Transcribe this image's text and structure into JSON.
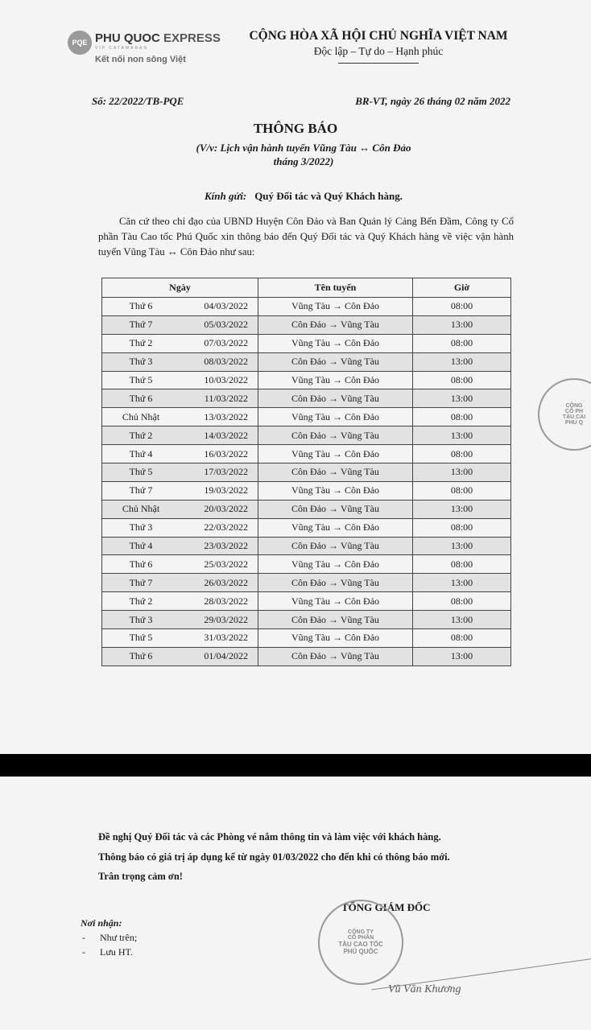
{
  "logo": {
    "brand_1": "PHU QUOC",
    "brand_2": " EXPRESS",
    "sub": "VIP CATAMARAN",
    "slogan": "Kết nối non sông Việt",
    "mark": "PQE"
  },
  "nation": {
    "line1": "CỘNG HÒA XÃ HỘI CHỦ NGHĨA VIỆT NAM",
    "line2": "Độc lập – Tự do – Hạnh phúc"
  },
  "doc_number": "Số: 22/2022/TB-PQE",
  "doc_date": "BR-VT, ngày 26 tháng 02 năm 2022",
  "title": "THÔNG BÁO",
  "subtitle_1": "(V/v: Lịch vận hành tuyến Vũng Tàu ↔ Côn Đảo",
  "subtitle_2": "tháng 3/2022)",
  "greeting_label": "Kính gửi:",
  "greeting": "Quý Đối tác và Quý Khách hàng.",
  "intro": "Căn cứ theo chỉ đạo của UBND Huyện Côn Đảo và Ban Quản lý Cảng Bến Đầm, Công ty Cổ phần Tàu Cao tốc Phú Quốc xin thông báo đến Quý Đối tác và Quý Khách hàng về việc vận hành tuyến Vũng Tàu ↔ Côn Đảo như sau:",
  "table": {
    "headers": [
      "Ngày",
      "Tên tuyến",
      "Giờ"
    ],
    "rows": [
      [
        "Thứ 6",
        "04/03/2022",
        "Vũng Tàu → Côn Đảo",
        "08:00"
      ],
      [
        "Thứ 7",
        "05/03/2022",
        "Côn Đảo → Vũng Tàu",
        "13:00"
      ],
      [
        "Thứ 2",
        "07/03/2022",
        "Vũng Tàu → Côn Đảo",
        "08:00"
      ],
      [
        "Thứ 3",
        "08/03/2022",
        "Côn Đảo → Vũng Tàu",
        "13:00"
      ],
      [
        "Thứ 5",
        "10/03/2022",
        "Vũng Tàu → Côn Đảo",
        "08:00"
      ],
      [
        "Thứ 6",
        "11/03/2022",
        "Côn Đảo → Vũng Tàu",
        "13:00"
      ],
      [
        "Chủ Nhật",
        "13/03/2022",
        "Vũng Tàu → Côn Đảo",
        "08:00"
      ],
      [
        "Thứ 2",
        "14/03/2022",
        "Côn Đảo → Vũng Tàu",
        "13:00"
      ],
      [
        "Thứ 4",
        "16/03/2022",
        "Vũng Tàu → Côn Đảo",
        "08:00"
      ],
      [
        "Thứ 5",
        "17/03/2022",
        "Côn Đảo → Vũng Tàu",
        "13:00"
      ],
      [
        "Thứ 7",
        "19/03/2022",
        "Vũng Tàu → Côn Đảo",
        "08:00"
      ],
      [
        "Chủ Nhật",
        "20/03/2022",
        "Côn Đảo → Vũng Tàu",
        "13:00"
      ],
      [
        "Thứ 3",
        "22/03/2022",
        "Vũng Tàu → Côn Đảo",
        "08:00"
      ],
      [
        "Thứ 4",
        "23/03/2022",
        "Côn Đảo → Vũng Tàu",
        "13:00"
      ],
      [
        "Thứ 6",
        "25/03/2022",
        "Vũng Tàu → Côn Đảo",
        "08:00"
      ],
      [
        "Thứ 7",
        "26/03/2022",
        "Côn Đảo → Vũng Tàu",
        "13:00"
      ],
      [
        "Thứ 2",
        "28/03/2022",
        "Vũng Tàu → Côn Đảo",
        "08:00"
      ],
      [
        "Thứ 3",
        "29/03/2022",
        "Côn Đảo → Vũng Tàu",
        "13:00"
      ],
      [
        "Thứ 5",
        "31/03/2022",
        "Vũng Tàu → Côn Đảo",
        "08:00"
      ],
      [
        "Thứ 6",
        "01/04/2022",
        "Côn Đảo → Vũng Tàu",
        "13:00"
      ]
    ]
  },
  "stamp_partial": {
    "l1": "CÔNG",
    "l2": "CỔ PH",
    "l3": "TÀU CAI",
    "l4": "PHÚ Q"
  },
  "closing": {
    "line1": "Đề nghị Quý Đối tác và các Phòng vé nắm thông tin và làm việc với khách hàng.",
    "line2": "Thông báo có giá trị áp dụng kể từ ngày 01/03/2022 cho đến khi có thông báo mới.",
    "line3": "Trân trọng cảm ơn!"
  },
  "recipients": {
    "label": "Nơi nhận:",
    "items": [
      "Như trên;",
      "Lưu HT."
    ]
  },
  "signature": {
    "role": "TỔNG GIÁM ĐỐC",
    "name": "Vũ Văn Khương"
  },
  "stamp": {
    "l1": "CÔNG TY",
    "l2": "CỔ PHẦN",
    "l3": "TÀU CAO TỐC",
    "l4": "PHÚ QUỐC",
    "ring": "M.S.D.N: 1702061375-C.T.C.P · TP PHÚ QUỐC · T.KIÊN GIANG"
  }
}
